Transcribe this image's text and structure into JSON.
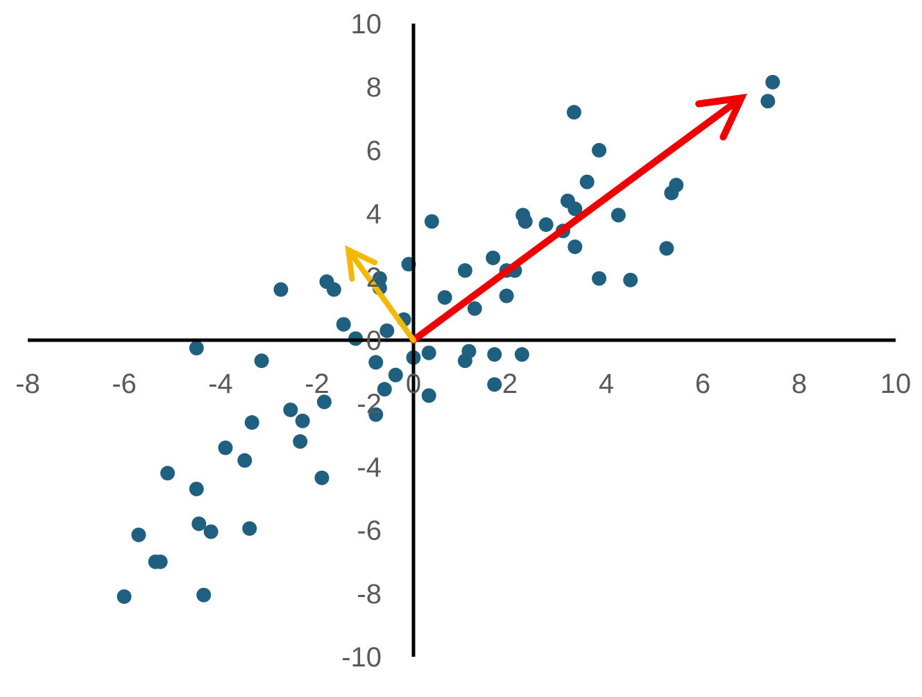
{
  "chart_data": {
    "type": "scatter",
    "title": "",
    "xlabel": "",
    "ylabel": "",
    "xlim": [
      -8,
      10
    ],
    "ylim": [
      -10,
      10
    ],
    "grid": false,
    "legend": "none",
    "x_ticks": [
      "-8",
      "-6",
      "-4",
      "-2",
      "0",
      "2",
      "4",
      "6",
      "8",
      "10"
    ],
    "y_ticks": [
      "10",
      "8",
      "6",
      "4",
      "2",
      "0",
      "-2",
      "-4",
      "-6",
      "-8",
      "-10"
    ],
    "colors": {
      "points": "#1f5f80",
      "axes": "#000000",
      "ticks": "#595959",
      "vector_red": "#ee0000",
      "vector_yellow": "#f5b800"
    },
    "series": [
      {
        "points": [
          [
            7.45,
            8.15
          ],
          [
            7.35,
            7.55
          ],
          [
            3.33,
            7.2
          ],
          [
            3.85,
            6.0
          ],
          [
            3.6,
            5.0
          ],
          [
            5.45,
            4.9
          ],
          [
            5.35,
            4.65
          ],
          [
            3.2,
            4.4
          ],
          [
            3.35,
            4.15
          ],
          [
            4.25,
            3.95
          ],
          [
            2.27,
            3.95
          ],
          [
            2.32,
            3.75
          ],
          [
            2.75,
            3.65
          ],
          [
            3.1,
            3.45
          ],
          [
            0.38,
            3.75
          ],
          [
            3.35,
            2.95
          ],
          [
            5.25,
            2.9
          ],
          [
            1.65,
            2.6
          ],
          [
            1.07,
            2.2
          ],
          [
            1.93,
            2.2
          ],
          [
            2.1,
            2.2
          ],
          [
            3.85,
            1.95
          ],
          [
            4.5,
            1.9
          ],
          [
            0.65,
            1.35
          ],
          [
            1.93,
            1.4
          ],
          [
            1.27,
            1.0
          ],
          [
            -0.1,
            2.4
          ],
          [
            -0.7,
            1.95
          ],
          [
            -0.7,
            1.65
          ],
          [
            -1.8,
            1.85
          ],
          [
            -1.65,
            1.6
          ],
          [
            -2.75,
            1.6
          ],
          [
            -0.2,
            0.65
          ],
          [
            -0.55,
            0.3
          ],
          [
            -1.45,
            0.5
          ],
          [
            -1.2,
            0.05
          ],
          [
            0.32,
            -0.4
          ],
          [
            1.15,
            -0.35
          ],
          [
            1.07,
            -0.65
          ],
          [
            1.68,
            -0.45
          ],
          [
            2.25,
            -0.45
          ],
          [
            0.0,
            -0.55
          ],
          [
            -0.78,
            -0.7
          ],
          [
            -0.37,
            -1.1
          ],
          [
            -0.6,
            -1.55
          ],
          [
            0.32,
            -1.75
          ],
          [
            1.68,
            -1.4
          ],
          [
            -4.5,
            -0.25
          ],
          [
            -3.15,
            -0.65
          ],
          [
            -1.85,
            -1.95
          ],
          [
            -2.55,
            -2.2
          ],
          [
            -2.3,
            -2.55
          ],
          [
            -0.78,
            -2.35
          ],
          [
            -3.35,
            -2.6
          ],
          [
            -2.35,
            -3.2
          ],
          [
            -3.9,
            -3.4
          ],
          [
            -3.5,
            -3.8
          ],
          [
            -1.9,
            -4.35
          ],
          [
            -5.1,
            -4.2
          ],
          [
            -4.5,
            -4.7
          ],
          [
            -4.45,
            -5.8
          ],
          [
            -4.2,
            -6.05
          ],
          [
            -3.4,
            -5.95
          ],
          [
            -5.7,
            -6.15
          ],
          [
            -5.35,
            -7.0
          ],
          [
            -5.25,
            -7.0
          ],
          [
            -6.0,
            -8.1
          ],
          [
            -4.35,
            -8.05
          ]
        ]
      }
    ],
    "vectors": [
      {
        "color": "red",
        "from": [
          0,
          0
        ],
        "to": [
          6.8,
          7.65
        ]
      },
      {
        "color": "yellow",
        "from": [
          0,
          0
        ],
        "to": [
          -1.35,
          2.85
        ]
      }
    ]
  }
}
